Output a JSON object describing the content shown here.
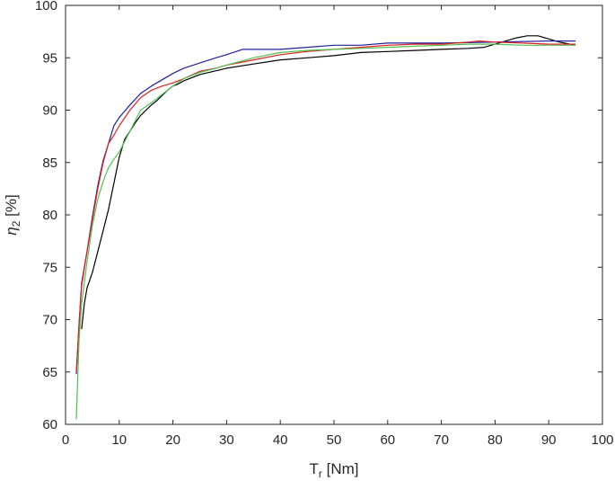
{
  "chart_data": {
    "type": "line",
    "title": "",
    "xlabel": {
      "main": "T",
      "sub": "r",
      "unit": " [Nm]"
    },
    "ylabel": {
      "main": "η",
      "sub": "2",
      "unit": " [%]"
    },
    "xlim": [
      0,
      100
    ],
    "ylim": [
      60,
      100
    ],
    "xticks": [
      0,
      10,
      20,
      30,
      40,
      50,
      60,
      70,
      80,
      90,
      100
    ],
    "yticks": [
      60,
      65,
      70,
      75,
      80,
      85,
      90,
      95,
      100
    ],
    "grid": false,
    "legend": "none",
    "series": [
      {
        "color": "#000000",
        "x": [
          3,
          3.5,
          4,
          5,
          6,
          7,
          8,
          9,
          10,
          11,
          12,
          13,
          14,
          15,
          16,
          17,
          18,
          19,
          20,
          21,
          22,
          25,
          30,
          35,
          40,
          45,
          50,
          55,
          60,
          65,
          70,
          75,
          78,
          80,
          82,
          84,
          86,
          88,
          90,
          92,
          94,
          95
        ],
        "y": [
          69.1,
          71.5,
          73.0,
          74.5,
          76.5,
          78.5,
          80.5,
          83.0,
          85.5,
          87.2,
          88.0,
          88.8,
          89.5,
          90.0,
          90.5,
          90.9,
          91.4,
          91.9,
          92.3,
          92.5,
          92.8,
          93.4,
          94.0,
          94.4,
          94.8,
          95.0,
          95.2,
          95.5,
          95.6,
          95.7,
          95.8,
          95.9,
          96.0,
          96.3,
          96.6,
          96.9,
          97.1,
          97.1,
          96.8,
          96.5,
          96.3,
          96.2
        ]
      },
      {
        "color": "#2020a0",
        "x": [
          2,
          2.5,
          3,
          4,
          5,
          6,
          7,
          8,
          9,
          10,
          12,
          14,
          16,
          18,
          20,
          22,
          25,
          28,
          30,
          33,
          35,
          40,
          45,
          50,
          55,
          60,
          70,
          80,
          90,
          95
        ],
        "y": [
          64.8,
          69.5,
          73.5,
          76.5,
          79.8,
          82.8,
          85.2,
          86.8,
          88.5,
          89.3,
          90.5,
          91.6,
          92.3,
          92.9,
          93.5,
          94.0,
          94.5,
          95.0,
          95.3,
          95.8,
          95.8,
          95.8,
          96.0,
          96.2,
          96.2,
          96.4,
          96.4,
          96.5,
          96.6,
          96.6
        ]
      },
      {
        "color": "#e02020",
        "x": [
          2,
          2.5,
          3,
          4,
          5,
          6,
          7,
          8,
          9,
          10,
          12,
          14,
          16,
          18,
          20,
          22,
          25,
          28,
          30,
          35,
          40,
          45,
          50,
          55,
          60,
          65,
          70,
          75,
          77,
          80,
          85,
          90,
          95
        ],
        "y": [
          65.0,
          69.5,
          73.2,
          76.5,
          79.5,
          82.5,
          85.0,
          86.8,
          87.6,
          88.5,
          90.0,
          91.2,
          91.9,
          92.3,
          92.6,
          93.0,
          93.7,
          94.0,
          94.3,
          94.8,
          95.3,
          95.6,
          95.8,
          96.0,
          96.2,
          96.3,
          96.3,
          96.5,
          96.6,
          96.5,
          96.4,
          96.3,
          96.3
        ]
      },
      {
        "color": "#50c050",
        "x": [
          2,
          2.5,
          3,
          4,
          5,
          6,
          7,
          8,
          9,
          10,
          12,
          14,
          16,
          18,
          20,
          22,
          25,
          28,
          30,
          35,
          40,
          45,
          50,
          55,
          60,
          65,
          70,
          75,
          80,
          85,
          90,
          95
        ],
        "y": [
          60.5,
          68.0,
          71.5,
          75.5,
          79.0,
          81.5,
          83.2,
          84.5,
          85.3,
          86.0,
          88.0,
          90.0,
          90.7,
          91.5,
          92.3,
          93.0,
          93.6,
          94.0,
          94.3,
          95.0,
          95.5,
          95.7,
          95.8,
          95.9,
          96.0,
          96.1,
          96.2,
          96.3,
          96.3,
          96.2,
          96.2,
          96.2
        ]
      }
    ]
  }
}
